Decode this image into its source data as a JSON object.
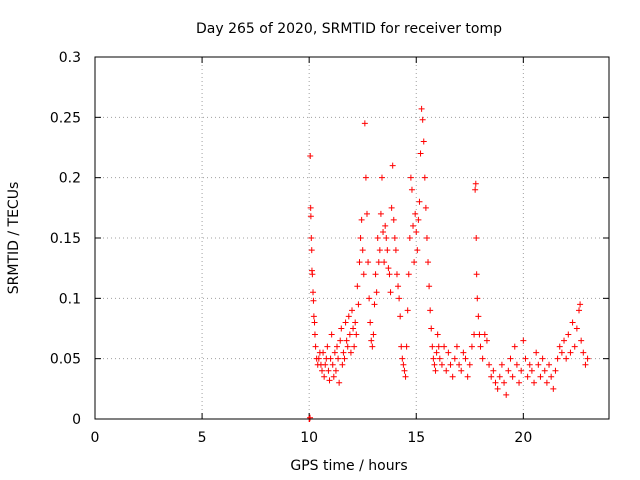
{
  "chart_data": {
    "type": "scatter",
    "title": "Day 265 of 2020, SRMTID for receiver tomp",
    "xlabel": "GPS time / hours",
    "ylabel": "SRMTID / TECUs",
    "xlim": [
      0,
      24
    ],
    "ylim": [
      0,
      0.3
    ],
    "xticks": [
      0,
      5,
      10,
      15,
      20
    ],
    "xtick_labels": [
      "0",
      "5",
      "10",
      "15",
      "20"
    ],
    "yticks": [
      0,
      0.05,
      0.1,
      0.15,
      0.2,
      0.25,
      0.3
    ],
    "ytick_labels": [
      "0",
      "0.05",
      "0.1",
      "0.15",
      "0.2",
      "0.25",
      "0.3"
    ],
    "grid": true,
    "marker": "+",
    "point_color": "#ff0000",
    "series": [
      {
        "name": "SRMTID",
        "points": [
          [
            10.0,
            0.0
          ],
          [
            10.02,
            0.0
          ],
          [
            10.04,
            0.001
          ],
          [
            10.05,
            0.218
          ],
          [
            10.07,
            0.175
          ],
          [
            10.08,
            0.168
          ],
          [
            10.1,
            0.15
          ],
          [
            10.12,
            0.14
          ],
          [
            10.13,
            0.123
          ],
          [
            10.15,
            0.12
          ],
          [
            10.18,
            0.105
          ],
          [
            10.2,
            0.098
          ],
          [
            10.22,
            0.085
          ],
          [
            10.25,
            0.08
          ],
          [
            10.27,
            0.07
          ],
          [
            10.3,
            0.06
          ],
          [
            10.35,
            0.05
          ],
          [
            10.4,
            0.045
          ],
          [
            10.45,
            0.05
          ],
          [
            10.5,
            0.055
          ],
          [
            10.55,
            0.045
          ],
          [
            10.6,
            0.04
          ],
          [
            10.65,
            0.055
          ],
          [
            10.7,
            0.035
          ],
          [
            10.75,
            0.045
          ],
          [
            10.8,
            0.05
          ],
          [
            10.85,
            0.06
          ],
          [
            10.9,
            0.04
          ],
          [
            10.95,
            0.032
          ],
          [
            11.0,
            0.05
          ],
          [
            11.05,
            0.07
          ],
          [
            11.1,
            0.045
          ],
          [
            11.15,
            0.035
          ],
          [
            11.2,
            0.055
          ],
          [
            11.25,
            0.04
          ],
          [
            11.3,
            0.06
          ],
          [
            11.35,
            0.05
          ],
          [
            11.4,
            0.03
          ],
          [
            11.45,
            0.065
          ],
          [
            11.5,
            0.075
          ],
          [
            11.55,
            0.045
          ],
          [
            11.6,
            0.055
          ],
          [
            11.65,
            0.05
          ],
          [
            11.7,
            0.08
          ],
          [
            11.75,
            0.065
          ],
          [
            11.8,
            0.06
          ],
          [
            11.85,
            0.085
          ],
          [
            11.9,
            0.07
          ],
          [
            11.95,
            0.055
          ],
          [
            12.0,
            0.09
          ],
          [
            12.05,
            0.075
          ],
          [
            12.1,
            0.06
          ],
          [
            12.15,
            0.08
          ],
          [
            12.2,
            0.07
          ],
          [
            12.25,
            0.11
          ],
          [
            12.3,
            0.095
          ],
          [
            12.35,
            0.13
          ],
          [
            12.4,
            0.15
          ],
          [
            12.45,
            0.165
          ],
          [
            12.5,
            0.14
          ],
          [
            12.55,
            0.12
          ],
          [
            12.6,
            0.245
          ],
          [
            12.65,
            0.2
          ],
          [
            12.7,
            0.17
          ],
          [
            12.75,
            0.13
          ],
          [
            12.8,
            0.1
          ],
          [
            12.85,
            0.08
          ],
          [
            12.9,
            0.065
          ],
          [
            12.95,
            0.06
          ],
          [
            13.0,
            0.07
          ],
          [
            13.05,
            0.095
          ],
          [
            13.1,
            0.12
          ],
          [
            13.15,
            0.105
          ],
          [
            13.2,
            0.15
          ],
          [
            13.25,
            0.13
          ],
          [
            13.3,
            0.14
          ],
          [
            13.35,
            0.17
          ],
          [
            13.4,
            0.2
          ],
          [
            13.45,
            0.155
          ],
          [
            13.5,
            0.13
          ],
          [
            13.55,
            0.16
          ],
          [
            13.6,
            0.15
          ],
          [
            13.65,
            0.14
          ],
          [
            13.7,
            0.125
          ],
          [
            13.75,
            0.12
          ],
          [
            13.8,
            0.105
          ],
          [
            13.85,
            0.175
          ],
          [
            13.9,
            0.21
          ],
          [
            13.95,
            0.165
          ],
          [
            14.0,
            0.15
          ],
          [
            14.05,
            0.14
          ],
          [
            14.1,
            0.12
          ],
          [
            14.15,
            0.11
          ],
          [
            14.2,
            0.1
          ],
          [
            14.25,
            0.085
          ],
          [
            14.3,
            0.06
          ],
          [
            14.35,
            0.05
          ],
          [
            14.4,
            0.045
          ],
          [
            14.45,
            0.04
          ],
          [
            14.5,
            0.035
          ],
          [
            14.55,
            0.06
          ],
          [
            14.6,
            0.09
          ],
          [
            14.65,
            0.12
          ],
          [
            14.7,
            0.15
          ],
          [
            14.75,
            0.2
          ],
          [
            14.8,
            0.19
          ],
          [
            14.85,
            0.16
          ],
          [
            14.9,
            0.13
          ],
          [
            14.95,
            0.17
          ],
          [
            15.0,
            0.155
          ],
          [
            15.05,
            0.14
          ],
          [
            15.1,
            0.165
          ],
          [
            15.15,
            0.18
          ],
          [
            15.2,
            0.22
          ],
          [
            15.25,
            0.257
          ],
          [
            15.3,
            0.248
          ],
          [
            15.35,
            0.23
          ],
          [
            15.4,
            0.2
          ],
          [
            15.45,
            0.175
          ],
          [
            15.5,
            0.15
          ],
          [
            15.55,
            0.13
          ],
          [
            15.6,
            0.11
          ],
          [
            15.65,
            0.09
          ],
          [
            15.7,
            0.075
          ],
          [
            15.75,
            0.06
          ],
          [
            15.8,
            0.05
          ],
          [
            15.85,
            0.045
          ],
          [
            15.9,
            0.04
          ],
          [
            15.95,
            0.055
          ],
          [
            16.0,
            0.07
          ],
          [
            16.05,
            0.06
          ],
          [
            16.1,
            0.05
          ],
          [
            16.2,
            0.045
          ],
          [
            16.3,
            0.06
          ],
          [
            16.4,
            0.04
          ],
          [
            16.5,
            0.055
          ],
          [
            16.6,
            0.045
          ],
          [
            16.7,
            0.035
          ],
          [
            16.8,
            0.05
          ],
          [
            16.9,
            0.06
          ],
          [
            17.0,
            0.045
          ],
          [
            17.1,
            0.04
          ],
          [
            17.2,
            0.055
          ],
          [
            17.3,
            0.05
          ],
          [
            17.4,
            0.035
          ],
          [
            17.5,
            0.045
          ],
          [
            17.6,
            0.06
          ],
          [
            17.7,
            0.07
          ],
          [
            17.75,
            0.19
          ],
          [
            17.78,
            0.195
          ],
          [
            17.8,
            0.15
          ],
          [
            17.82,
            0.12
          ],
          [
            17.85,
            0.1
          ],
          [
            17.9,
            0.085
          ],
          [
            17.95,
            0.07
          ],
          [
            18.0,
            0.06
          ],
          [
            18.1,
            0.05
          ],
          [
            18.2,
            0.07
          ],
          [
            18.3,
            0.065
          ],
          [
            18.4,
            0.045
          ],
          [
            18.5,
            0.035
          ],
          [
            18.6,
            0.04
          ],
          [
            18.7,
            0.03
          ],
          [
            18.8,
            0.025
          ],
          [
            18.9,
            0.035
          ],
          [
            19.0,
            0.045
          ],
          [
            19.1,
            0.03
          ],
          [
            19.2,
            0.02
          ],
          [
            19.3,
            0.04
          ],
          [
            19.4,
            0.05
          ],
          [
            19.5,
            0.035
          ],
          [
            19.6,
            0.06
          ],
          [
            19.7,
            0.045
          ],
          [
            19.8,
            0.03
          ],
          [
            19.9,
            0.04
          ],
          [
            20.0,
            0.065
          ],
          [
            20.1,
            0.05
          ],
          [
            20.2,
            0.035
          ],
          [
            20.3,
            0.045
          ],
          [
            20.4,
            0.04
          ],
          [
            20.5,
            0.03
          ],
          [
            20.6,
            0.055
          ],
          [
            20.7,
            0.045
          ],
          [
            20.8,
            0.035
          ],
          [
            20.9,
            0.05
          ],
          [
            21.0,
            0.04
          ],
          [
            21.1,
            0.03
          ],
          [
            21.2,
            0.045
          ],
          [
            21.3,
            0.035
          ],
          [
            21.4,
            0.025
          ],
          [
            21.5,
            0.04
          ],
          [
            21.6,
            0.05
          ],
          [
            21.7,
            0.06
          ],
          [
            21.8,
            0.055
          ],
          [
            21.9,
            0.065
          ],
          [
            22.0,
            0.05
          ],
          [
            22.1,
            0.07
          ],
          [
            22.2,
            0.055
          ],
          [
            22.3,
            0.08
          ],
          [
            22.4,
            0.06
          ],
          [
            22.5,
            0.075
          ],
          [
            22.6,
            0.09
          ],
          [
            22.65,
            0.095
          ],
          [
            22.7,
            0.065
          ],
          [
            22.8,
            0.055
          ],
          [
            22.9,
            0.045
          ],
          [
            23.0,
            0.05
          ]
        ]
      }
    ]
  }
}
